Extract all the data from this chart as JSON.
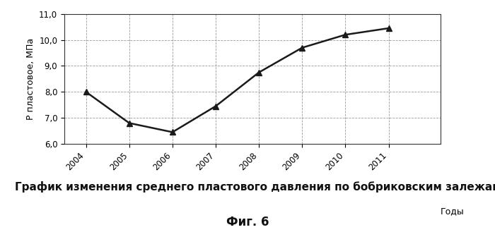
{
  "x": [
    2004,
    2005,
    2006,
    2007,
    2008,
    2009,
    2010,
    2011
  ],
  "y": [
    8.0,
    6.8,
    6.45,
    7.45,
    8.75,
    9.7,
    10.2,
    10.45
  ],
  "xlim": [
    2003.5,
    2012.2
  ],
  "ylim": [
    6.0,
    11.0
  ],
  "yticks": [
    6.0,
    7.0,
    8.0,
    9.0,
    10.0,
    11.0
  ],
  "ytick_labels": [
    "6,0",
    "7,0",
    "8,0",
    "9,0",
    "10,0",
    "11,0"
  ],
  "xticks": [
    2004,
    2005,
    2006,
    2007,
    2008,
    2009,
    2010,
    2011
  ],
  "gody_label": "Годы",
  "ylabel": "Р пластовое, МПа",
  "line_color": "#1a1a1a",
  "marker": "^",
  "marker_size": 6,
  "marker_color": "#1a1a1a",
  "grid_color": "#999999",
  "grid_style": "--",
  "background_color": "#ffffff",
  "caption_line1": "График изменения среднего пластового давления по бобриковским залежам.",
  "caption_line2": "Фиг. 6",
  "caption_fontsize": 11,
  "fig2_fontsize": 12
}
